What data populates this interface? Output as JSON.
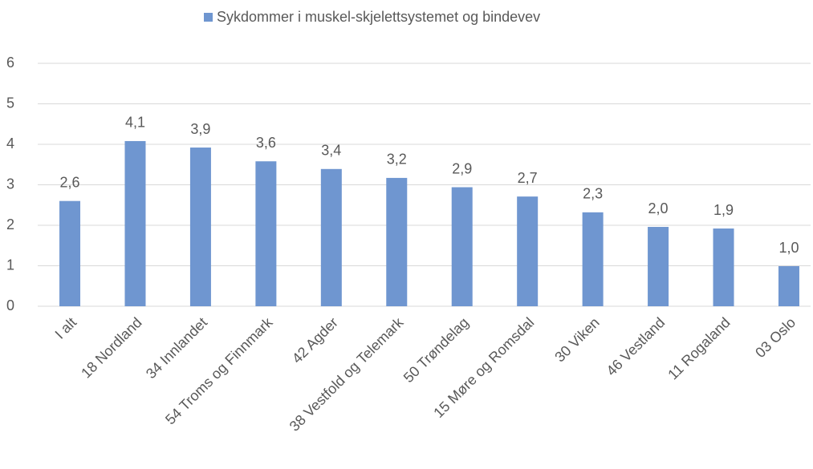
{
  "chart_data": {
    "type": "bar",
    "categories": [
      "I alt",
      "18 Nordland",
      "34 Innlandet",
      "54 Troms og Finnmark",
      "42 Agder",
      "38 Vestfold og Telemark",
      "50 Trøndelag",
      "15 Møre og Romsdal",
      "30 Viken",
      "46 Vestland",
      "11 Rogaland",
      "03 Oslo"
    ],
    "series": [
      {
        "name": "Sykdommer i muskel-skjelettsystemet og bindevev",
        "color": "#6f96d0",
        "values": [
          2.6,
          4.08,
          3.92,
          3.58,
          3.39,
          3.17,
          2.94,
          2.71,
          2.32,
          1.96,
          1.92,
          0.99
        ],
        "value_labels": [
          "2,6",
          "4,1",
          "3,9",
          "3,6",
          "3,4",
          "3,2",
          "2,9",
          "2,7",
          "2,3",
          "2,0",
          "1,9",
          "1,0"
        ]
      }
    ],
    "ylim": [
      0,
      6
    ],
    "yticks": [
      0,
      1,
      2,
      3,
      4,
      5,
      6
    ],
    "grid": true,
    "legend": "top"
  }
}
